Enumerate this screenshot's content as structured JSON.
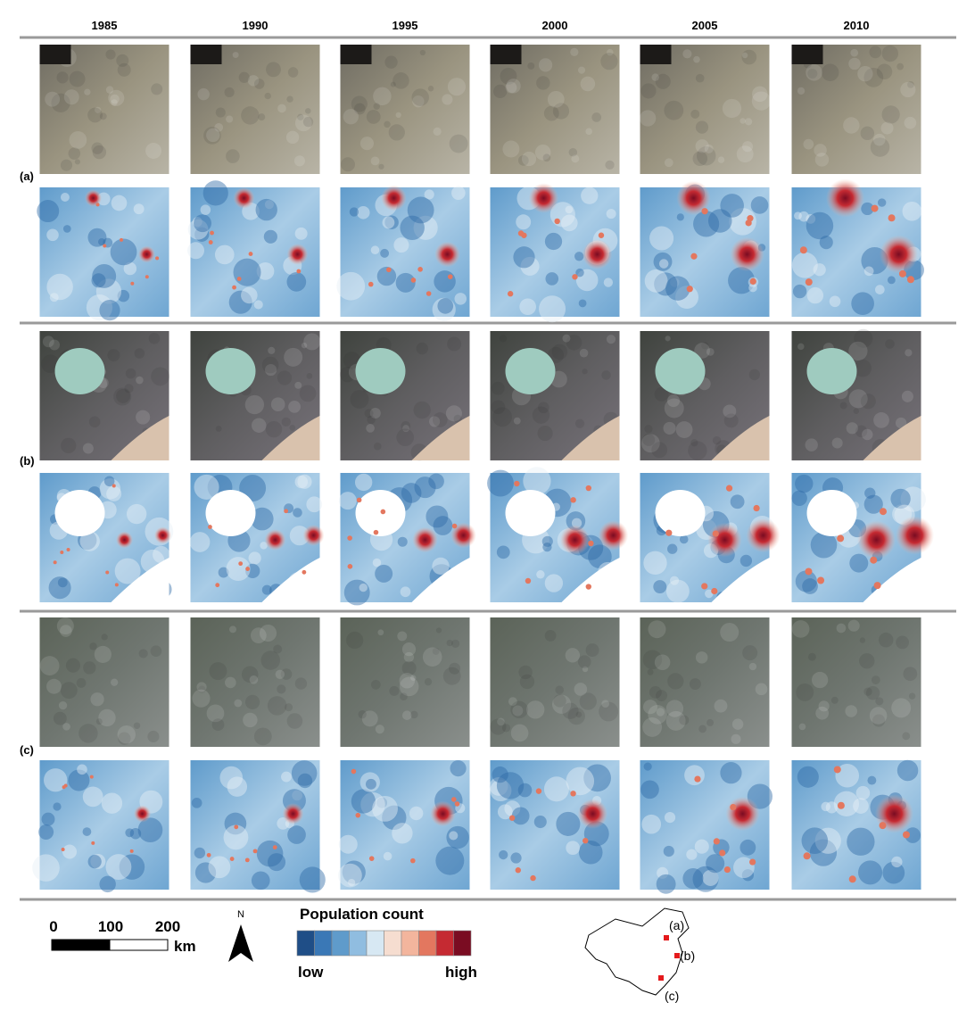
{
  "columns": [
    "1985",
    "1990",
    "1995",
    "2000",
    "2005",
    "2010"
  ],
  "rows": [
    "(a)",
    "(b)",
    "(c)"
  ],
  "scale_bar": {
    "ticks": [
      "0",
      "100",
      "200"
    ],
    "unit": "km"
  },
  "north_arrow": "N",
  "legend": {
    "title": "Population count",
    "low": "low",
    "high": "high",
    "colors": [
      "#1f4e87",
      "#3a78b6",
      "#5f9bcb",
      "#90bde0",
      "#d7e8f3",
      "#f6ddd0",
      "#f3b59d",
      "#e3775f",
      "#c52a32",
      "#7a0c22"
    ]
  },
  "inset_map": {
    "labels": [
      "(a)",
      "(b)",
      "(c)"
    ]
  }
}
